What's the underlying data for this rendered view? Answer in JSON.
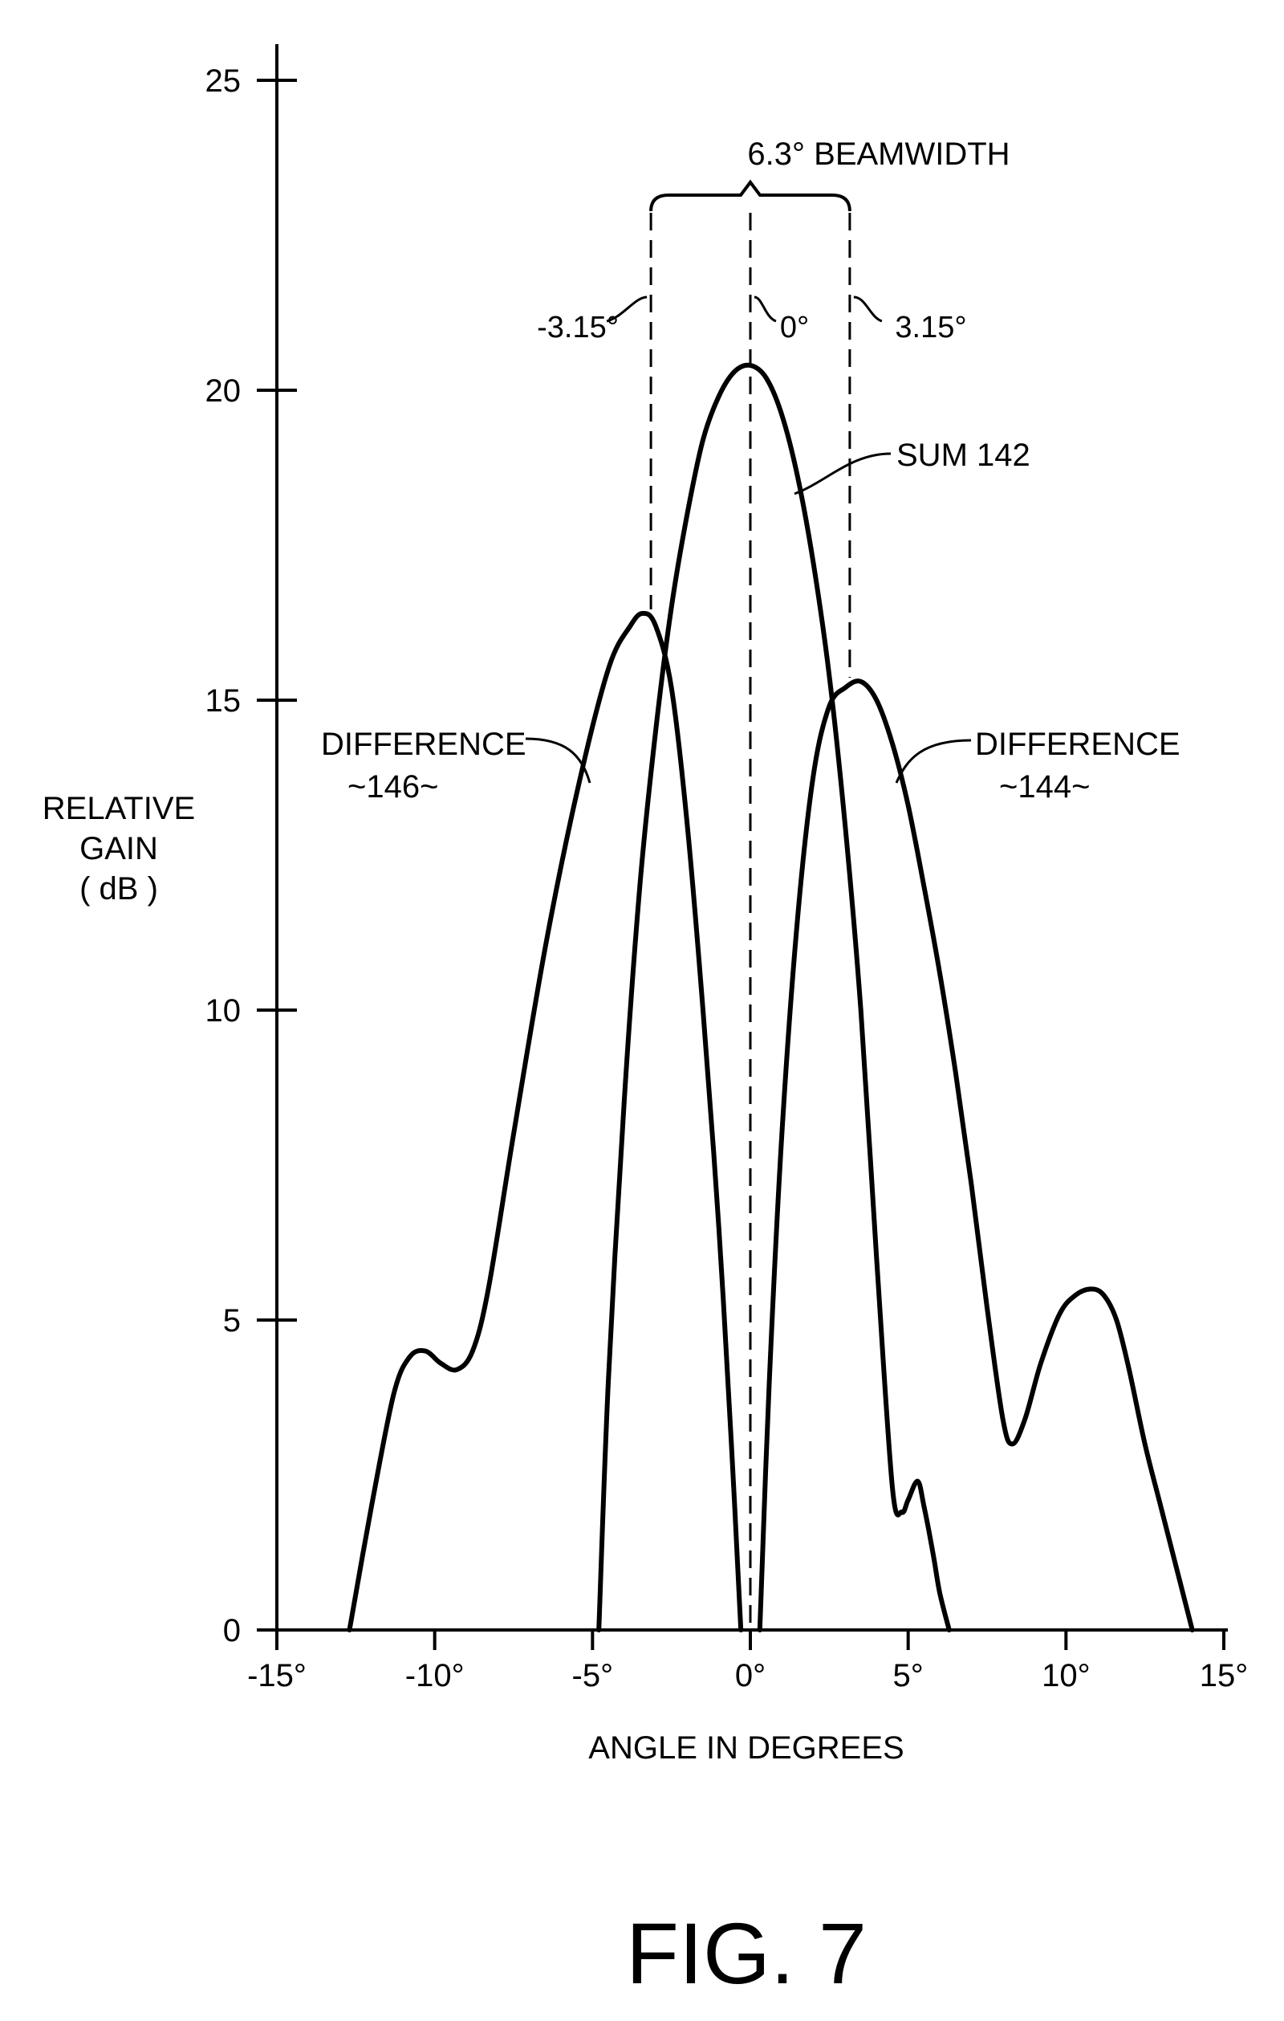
{
  "figure_label": "FIG. 7",
  "chart_data": {
    "type": "line",
    "xlabel": "ANGLE IN DEGREES",
    "ylabel_lines": [
      "RELATIVE",
      "GAIN",
      "( dB )"
    ],
    "xlim": [
      -15,
      15
    ],
    "ylim": [
      0,
      25
    ],
    "x_ticks": [
      -15,
      -10,
      -5,
      0,
      5,
      10,
      15
    ],
    "x_tick_labels": [
      "-15°",
      "-10°",
      "-5°",
      "0°",
      "5°",
      "10°",
      "15°"
    ],
    "y_ticks": [
      0,
      5,
      10,
      15,
      20,
      25
    ],
    "y_tick_labels": [
      "0",
      "5",
      "10",
      "15",
      "20",
      "25"
    ],
    "grid": false,
    "beamwidth": {
      "label": "6.3° BEAMWIDTH",
      "left_label": "-3.15°",
      "center_label": "0°",
      "right_label": "3.15°",
      "left_x": -3.15,
      "center_x": 0,
      "right_x": 3.15
    },
    "series": [
      {
        "name": "SUM 142",
        "label_lines": [
          "SUM 142"
        ],
        "x": [
          -4.8,
          -4.5,
          -4.0,
          -3.5,
          -3.0,
          -2.5,
          -2.0,
          -1.5,
          -1.0,
          -0.5,
          0.0,
          0.5,
          1.0,
          1.5,
          2.0,
          2.5,
          3.0,
          3.5,
          4.0,
          4.5,
          4.8,
          5.0,
          5.3,
          5.5,
          5.8,
          6.0,
          6.3
        ],
        "y": [
          0,
          4.0,
          8.5,
          12.0,
          14.5,
          16.5,
          18.0,
          19.2,
          19.9,
          20.3,
          20.4,
          20.2,
          19.6,
          18.6,
          17.2,
          15.4,
          13.0,
          10.0,
          6.0,
          2.3,
          1.9,
          2.1,
          2.4,
          2.0,
          1.2,
          0.6,
          0
        ]
      },
      {
        "name": "DIFFERENCE 146",
        "label_lines": [
          "DIFFERENCE",
          "~146~"
        ],
        "x": [
          -12.7,
          -12.0,
          -11.3,
          -10.8,
          -10.3,
          -9.8,
          -9.3,
          -8.8,
          -8.3,
          -7.5,
          -6.5,
          -5.5,
          -4.5,
          -3.8,
          -3.4,
          -3.0,
          -2.5,
          -2.0,
          -1.5,
          -1.0,
          -0.6,
          -0.3
        ],
        "y": [
          0,
          2.0,
          3.8,
          4.4,
          4.5,
          4.3,
          4.2,
          4.5,
          5.5,
          8.0,
          11.0,
          13.5,
          15.5,
          16.2,
          16.4,
          16.2,
          15.2,
          13.0,
          10.0,
          6.5,
          3.0,
          0
        ]
      },
      {
        "name": "DIFFERENCE 144",
        "label_lines": [
          "DIFFERENCE",
          "~144~"
        ],
        "x": [
          0.3,
          0.6,
          1.0,
          1.5,
          2.0,
          2.5,
          3.0,
          3.5,
          4.0,
          4.5,
          5.0,
          5.5,
          6.0,
          6.5,
          7.0,
          7.5,
          8.0,
          8.3,
          8.7,
          9.2,
          9.8,
          10.3,
          10.8,
          11.2,
          11.6,
          12.0,
          12.5,
          13.0,
          13.5,
          14.0
        ],
        "y": [
          0,
          4.0,
          8.0,
          11.5,
          13.8,
          14.9,
          15.2,
          15.3,
          15.0,
          14.3,
          13.3,
          12.0,
          10.6,
          9.0,
          7.2,
          5.2,
          3.4,
          3.0,
          3.4,
          4.3,
          5.1,
          5.4,
          5.5,
          5.4,
          5.0,
          4.2,
          3.0,
          2.0,
          1.0,
          0
        ]
      }
    ]
  }
}
